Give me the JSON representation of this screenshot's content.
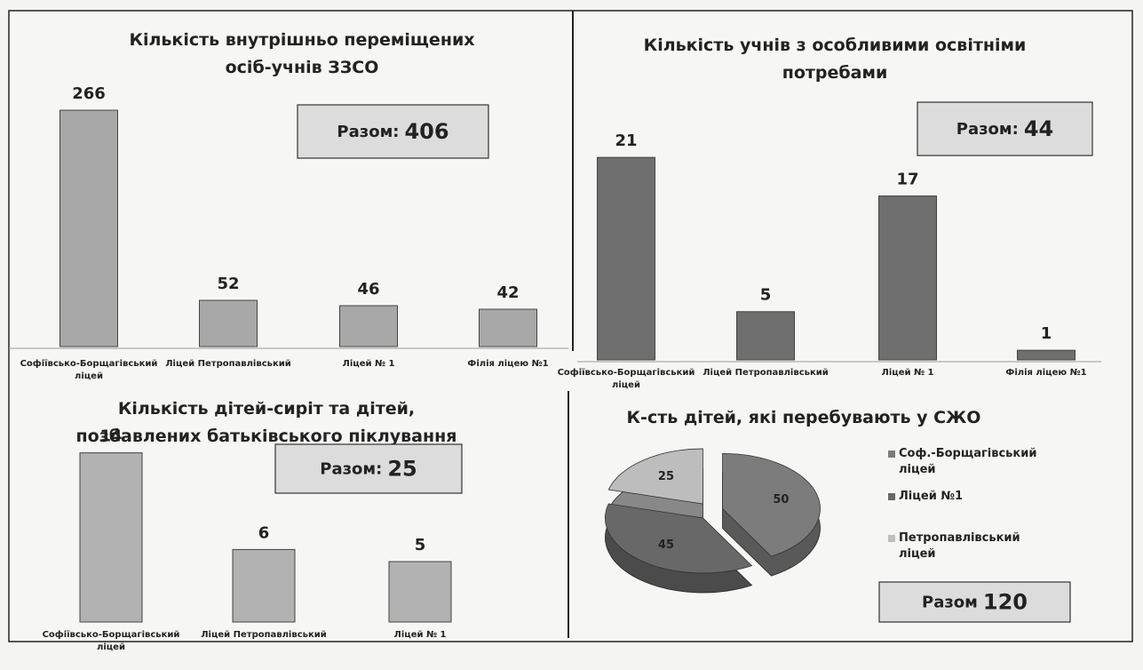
{
  "chart_data": [
    {
      "type": "bar",
      "title": "Кількість внутрішньо переміщених осіб-учнів ЗЗСО",
      "categories": [
        "Софіївсько-Борщагівський ліцей",
        "Ліцей Петропавлівський",
        "Ліцей  № 1",
        "Філія ліцею №1"
      ],
      "values": [
        266,
        52,
        46,
        42
      ],
      "color": "#a8a8a8",
      "ylim": [
        0,
        290
      ],
      "total_label": "Разом:",
      "total": 406
    },
    {
      "type": "bar",
      "title": "Кількість учнів з особливими освітніми потребами",
      "categories": [
        "Софіївсько-Борщагівський ліцей",
        "Ліцей Петропавлівський",
        "Ліцей  № 1",
        "Філія ліцею №1"
      ],
      "values": [
        21,
        5,
        17,
        1
      ],
      "color": "#6f6f6f",
      "ylim": [
        0,
        23.5
      ],
      "total_label": "Разом:",
      "total": 44
    },
    {
      "type": "bar",
      "title": "Кількість дітей-сиріт та дітей, позбавлених батьківського піклування",
      "categories": [
        "Софіївсько-Борщагівський ліцей",
        "Ліцей Петропавлівський",
        "Ліцей  № 1"
      ],
      "values": [
        14,
        6,
        5
      ],
      "color": "#b2b2b2",
      "ylim": [
        0,
        15
      ],
      "total_label": "Разом:",
      "total": 25
    },
    {
      "type": "pie",
      "title": "К-сть дітей, які перебувають у СЖО",
      "categories": [
        "Соф.-Борщагівський ліцей",
        "Ліцей №1",
        "Петропавлівський ліцей"
      ],
      "values": [
        50,
        45,
        25
      ],
      "colors": [
        "#7c7c7c",
        "#686868",
        "#bdbdbd"
      ],
      "total_label": "Разом",
      "total": 120
    }
  ]
}
